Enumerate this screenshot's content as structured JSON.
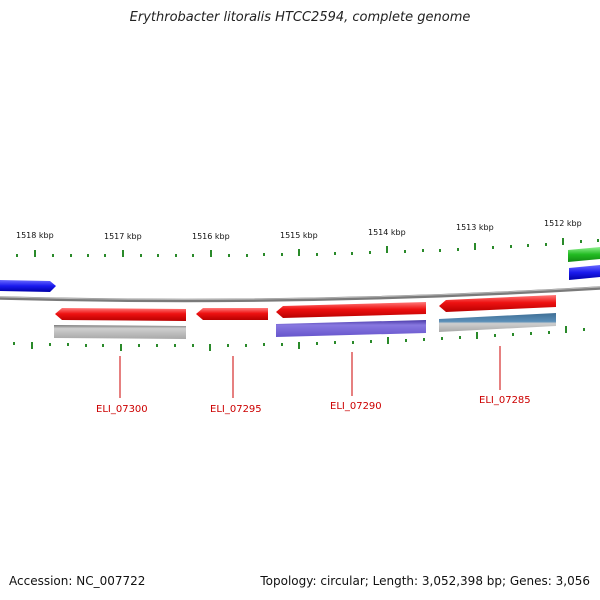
{
  "title": "Erythrobacter litoralis HTCC2594, complete genome",
  "accession": "Accession: NC_007722",
  "summary": "Topology: circular; Length: 3,052,398 bp; Genes: 3,056",
  "ruler_labels": [
    "1518 kbp",
    "1517 kbp",
    "1516 kbp",
    "1515 kbp",
    "1514 kbp",
    "1513 kbp",
    "1512 kbp"
  ],
  "genes": [
    "ELI_07300",
    "ELI_07295",
    "ELI_07290",
    "ELI_07285"
  ],
  "colors": {
    "gene_red": "#ee1111",
    "blue": "#1a1aee",
    "green": "#22bb22",
    "gray": "#b0b0b0",
    "purple": "#6655cc",
    "steel": "#4d7fa8",
    "tick": "#2a8a2a",
    "label_red": "#cc0000"
  }
}
